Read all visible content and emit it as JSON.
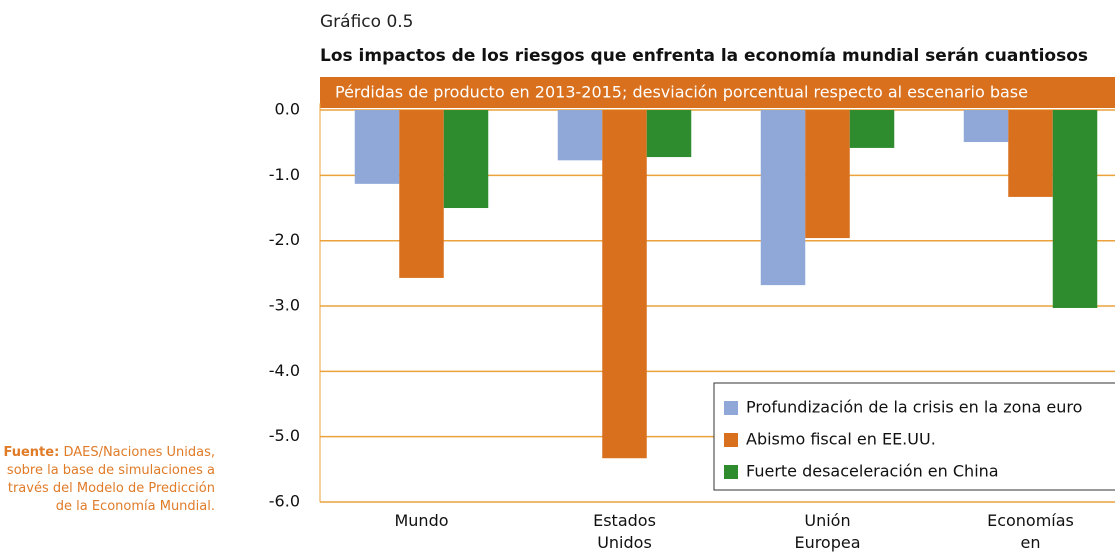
{
  "chart_data": {
    "type": "bar",
    "label": "Gráfico 0.5",
    "title": "Los impactos de los riesgos que enfrenta la economía mundial serán cuantiosos",
    "subtitle": "Pérdidas de producto en 2013-2015; desviación porcentual respecto al escenario base",
    "source_label": "Fuente:",
    "source": "DAES/Naciones Unidas, sobre la base de simulaciones a través del Modelo de Predicción de la Economía Mundial.",
    "categories": [
      "Mundo",
      "Estados Unidos",
      "Unión Europea",
      "Economías en desarrollo"
    ],
    "series": [
      {
        "name": "Profundización de la crisis en la zona euro",
        "color": "#8fa8d8",
        "values": [
          -1.13,
          -0.77,
          -2.68,
          -0.49
        ]
      },
      {
        "name": "Abismo fiscal en EE.UU.",
        "color": "#d9701e",
        "values": [
          -2.57,
          -5.33,
          -1.96,
          -1.33
        ]
      },
      {
        "name": "Fuerte desaceleración en China",
        "color": "#2e8b2e",
        "values": [
          -1.5,
          -0.72,
          -0.58,
          -3.03
        ]
      }
    ],
    "ylim": [
      -6,
      0.1
    ],
    "yticks": [
      {
        "value": 0,
        "label": "0.0"
      },
      {
        "value": -1,
        "label": "-1.0"
      },
      {
        "value": -2,
        "label": "-2.0"
      },
      {
        "value": -3,
        "label": "-3.0"
      },
      {
        "value": -4,
        "label": "-4.0"
      },
      {
        "value": -5,
        "label": "-5.0"
      },
      {
        "value": -6,
        "label": "-6.0"
      }
    ],
    "grid": true,
    "grid_color": "#eca23a",
    "legend": "lower right"
  }
}
